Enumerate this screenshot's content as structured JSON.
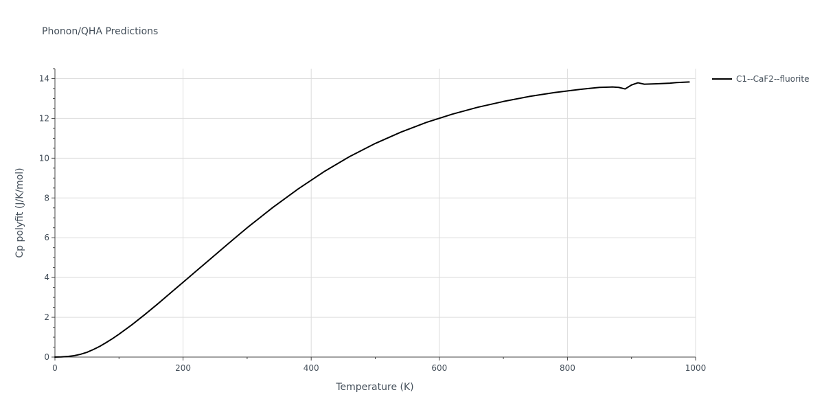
{
  "chart_data": {
    "type": "line",
    "title": "Phonon/QHA Predictions",
    "xlabel": "Temperature (K)",
    "ylabel": "Cp polyfit (J/K/mol)",
    "xlim": [
      0,
      1000
    ],
    "ylim": [
      0,
      14.5
    ],
    "xticks": [
      0,
      200,
      400,
      600,
      800,
      1000
    ],
    "yticks": [
      0,
      2,
      4,
      6,
      8,
      10,
      12,
      14
    ],
    "grid": true,
    "legend_position": "top-right",
    "series": [
      {
        "name": "C1--CaF2--fluorite",
        "color": "#000000",
        "x": [
          0,
          10,
          20,
          30,
          40,
          50,
          60,
          70,
          80,
          90,
          100,
          120,
          140,
          160,
          180,
          200,
          220,
          240,
          260,
          280,
          300,
          340,
          380,
          420,
          460,
          500,
          540,
          580,
          620,
          660,
          700,
          740,
          780,
          820,
          850,
          870,
          880,
          890,
          900,
          910,
          920,
          940,
          960,
          970,
          990
        ],
        "y": [
          0,
          0.01,
          0.03,
          0.07,
          0.14,
          0.24,
          0.38,
          0.54,
          0.73,
          0.93,
          1.15,
          1.62,
          2.13,
          2.66,
          3.21,
          3.76,
          4.31,
          4.86,
          5.41,
          5.96,
          6.5,
          7.52,
          8.46,
          9.32,
          10.08,
          10.74,
          11.31,
          11.8,
          12.21,
          12.56,
          12.85,
          13.1,
          13.3,
          13.46,
          13.56,
          13.58,
          13.56,
          13.48,
          13.68,
          13.79,
          13.72,
          13.74,
          13.77,
          13.8,
          13.83
        ]
      }
    ]
  }
}
